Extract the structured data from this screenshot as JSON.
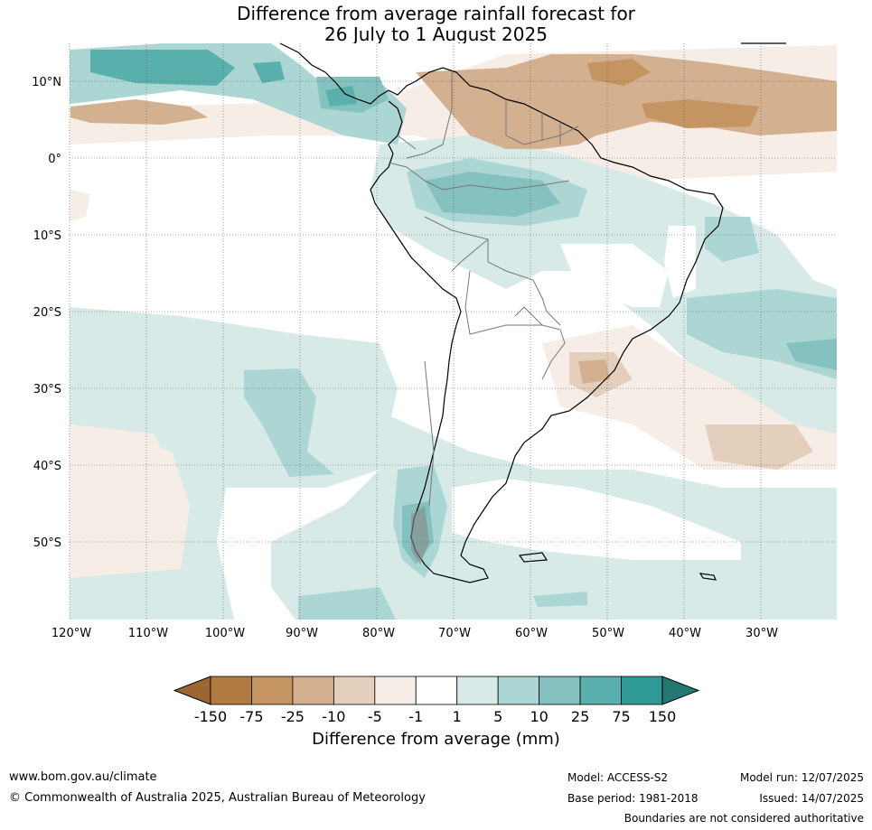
{
  "title_line1": "Difference from average rainfall forecast for",
  "title_line2": "26 July to 1 August 2025",
  "lat_labels": [
    "10°N",
    "0°",
    "10°S",
    "20°S",
    "30°S",
    "40°S",
    "50°S"
  ],
  "lon_labels": [
    "120°W",
    "110°W",
    "100°W",
    "90°W",
    "80°W",
    "70°W",
    "60°W",
    "50°W",
    "40°W",
    "30°W"
  ],
  "colorbar": {
    "title": "Difference from average (mm)",
    "tick_labels": [
      "-150",
      "-75",
      "-25",
      "-10",
      "-5",
      "-1",
      "1",
      "5",
      "10",
      "25",
      "75",
      "150"
    ],
    "colors": [
      "#9c6634",
      "#b07a40",
      "#c49463",
      "#d3b090",
      "#e4cfbd",
      "#f5ede6",
      "#ffffff",
      "#d7eae8",
      "#acd6d3",
      "#85c2bf",
      "#5ab0ac",
      "#2f9a95",
      "#237872"
    ]
  },
  "footer": {
    "website": "www.bom.gov.au/climate",
    "copyright": "© Commonwealth of Australia 2025, Australian Bureau of Meteorology",
    "model": "Model: ACCESS-S2",
    "base_period": "Base period: 1981-2018",
    "model_run": "Model run: 12/07/2025",
    "issued": "Issued: 14/07/2025",
    "boundaries": "Boundaries are not considered authoritative"
  }
}
